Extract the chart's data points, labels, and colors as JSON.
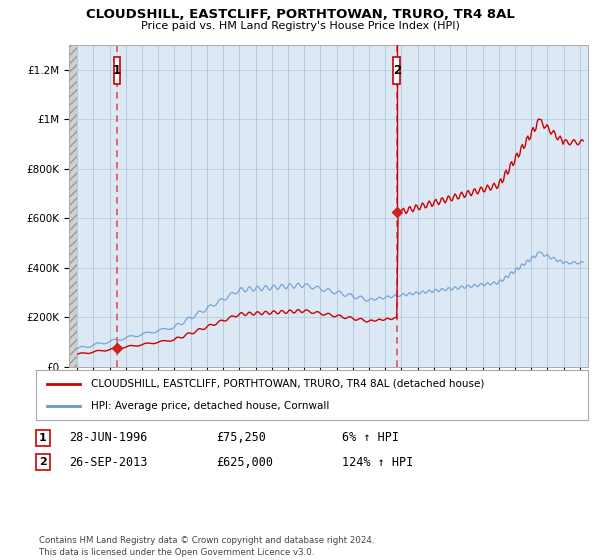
{
  "title": "CLOUDSHILL, EASTCLIFF, PORTHTOWAN, TRURO, TR4 8AL",
  "subtitle": "Price paid vs. HM Land Registry's House Price Index (HPI)",
  "legend_line1": "CLOUDSHILL, EASTCLIFF, PORTHTOWAN, TRURO, TR4 8AL (detached house)",
  "legend_line2": "HPI: Average price, detached house, Cornwall",
  "annotation1_date": "28-JUN-1996",
  "annotation1_price": "£75,250",
  "annotation1_hpi": "6% ↑ HPI",
  "annotation2_date": "26-SEP-2013",
  "annotation2_price": "£625,000",
  "annotation2_hpi": "124% ↑ HPI",
  "footer": "Contains HM Land Registry data © Crown copyright and database right 2024.\nThis data is licensed under the Open Government Licence v3.0.",
  "red_line_color": "#cc0000",
  "blue_line_color": "#6699cc",
  "annotation_dot_color": "#cc2222",
  "dashed_line_color": "#dd4444",
  "ylim": [
    0,
    1300000
  ],
  "xlim_start": 1993.5,
  "xlim_end": 2025.5,
  "grid_color": "#cccccc",
  "background_color": "#ffffff",
  "plot_bg_color": "#dce9f5",
  "hatch_bg_color": "#c8c8c8"
}
